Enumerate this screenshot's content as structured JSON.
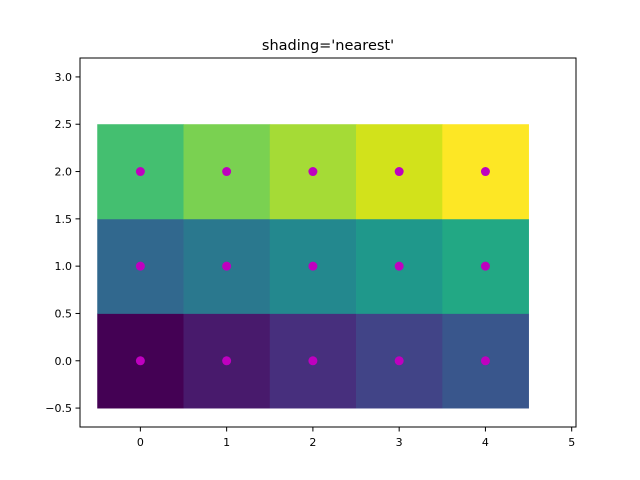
{
  "chart_data": {
    "type": "heatmap",
    "title": "shading='nearest'",
    "xlabel": "",
    "ylabel": "",
    "xlim": [
      -0.7,
      5.05
    ],
    "ylim": [
      -0.7,
      3.2
    ],
    "x_ticks": [
      "0",
      "1",
      "2",
      "3",
      "4",
      "5"
    ],
    "y_ticks": [
      "−0.5",
      "0.0",
      "0.5",
      "1.0",
      "1.5",
      "2.0",
      "2.5",
      "3.0"
    ],
    "x": [
      0,
      1,
      2,
      3,
      4
    ],
    "y": [
      0,
      1,
      2
    ],
    "z": [
      [
        0,
        1,
        2,
        3,
        4
      ],
      [
        5,
        6,
        7,
        8,
        9
      ],
      [
        10,
        11,
        12,
        13,
        14
      ]
    ],
    "colormap": "viridis",
    "cell_colors": [
      [
        "#440154",
        "#481a6c",
        "#472f7d",
        "#414487",
        "#39568c"
      ],
      [
        "#31688e",
        "#2a788e",
        "#23888e",
        "#1f988b",
        "#22a884"
      ],
      [
        "#44bf70",
        "#7ad151",
        "#a5db36",
        "#d2e21b",
        "#fde725"
      ]
    ],
    "points": {
      "x": [
        0,
        1,
        2,
        3,
        4,
        0,
        1,
        2,
        3,
        4,
        0,
        1,
        2,
        3,
        4
      ],
      "y": [
        0,
        0,
        0,
        0,
        0,
        1,
        1,
        1,
        1,
        1,
        2,
        2,
        2,
        2,
        2
      ],
      "color": "#bf00bf"
    },
    "grid": false,
    "legend": "none"
  }
}
